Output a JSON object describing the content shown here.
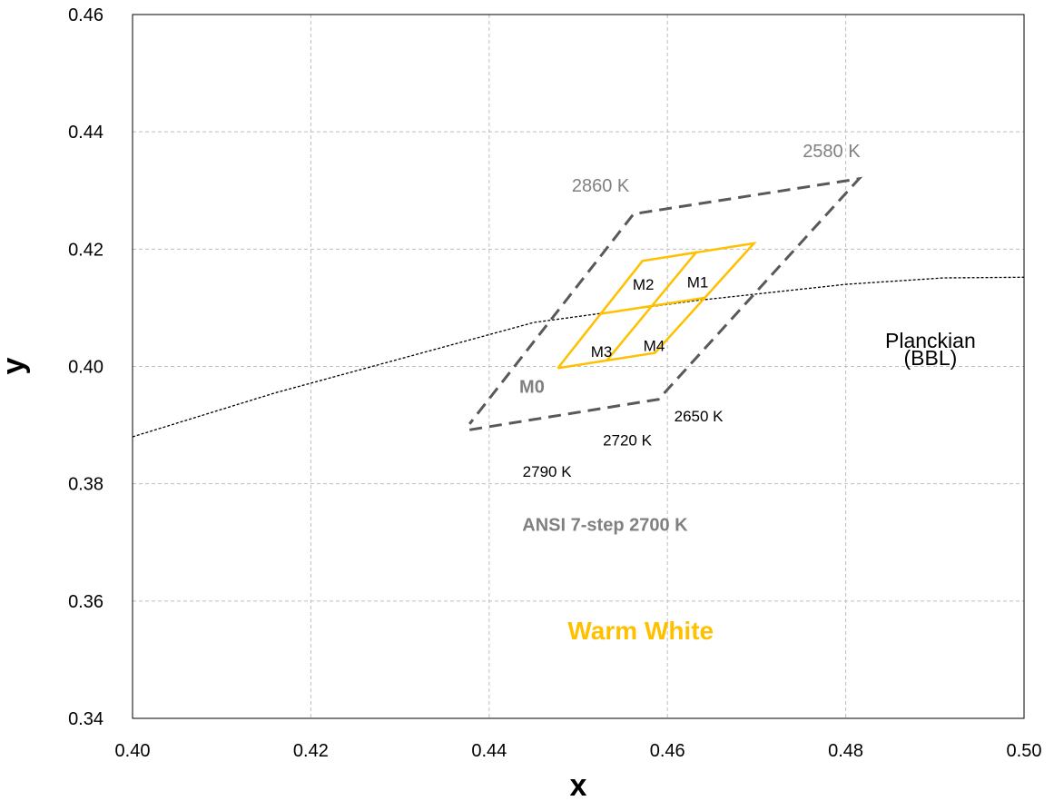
{
  "chart_data": {
    "type": "line",
    "title": "",
    "xlabel": "x",
    "ylabel": "y",
    "xlim": [
      0.4,
      0.5
    ],
    "ylim": [
      0.34,
      0.46
    ],
    "xticks": [
      "0.40",
      "0.42",
      "0.44",
      "0.46",
      "0.48",
      "0.50"
    ],
    "yticks": [
      "0.34",
      "0.36",
      "0.38",
      "0.40",
      "0.42",
      "0.44",
      "0.46"
    ],
    "grid": true,
    "grid_style": "dashed",
    "series": [
      {
        "role": "planckian-locus",
        "style": "dotted",
        "color": "#000000",
        "points": [
          [
            0.4,
            0.388
          ],
          [
            0.416,
            0.3955
          ],
          [
            0.445,
            0.4075
          ],
          [
            0.463,
            0.4112
          ],
          [
            0.48,
            0.414
          ],
          [
            0.491,
            0.4151
          ],
          [
            0.5,
            0.4152
          ]
        ]
      },
      {
        "role": "ansi-quadrangle-m0",
        "style": "dashed",
        "color": "#595959",
        "points": [
          [
            0.4378,
            0.3892
          ],
          [
            0.459,
            0.3944
          ],
          [
            0.4815,
            0.432
          ],
          [
            0.4562,
            0.426
          ],
          [
            0.4378,
            0.3902
          ]
        ]
      },
      {
        "role": "bin-outer",
        "style": "solid",
        "color": "#FFC000",
        "points": [
          [
            0.4477,
            0.3997
          ],
          [
            0.4586,
            0.4023
          ],
          [
            0.4697,
            0.421
          ],
          [
            0.4572,
            0.418
          ],
          [
            0.4477,
            0.3997
          ]
        ]
      },
      {
        "role": "bin-divider-1",
        "style": "solid",
        "color": "#FFC000",
        "points": [
          [
            0.4526,
            0.409
          ],
          [
            0.4642,
            0.4117
          ]
        ]
      },
      {
        "role": "bin-divider-2",
        "style": "solid",
        "color": "#FFC000",
        "points": [
          [
            0.4532,
            0.401
          ],
          [
            0.4633,
            0.4196
          ]
        ]
      }
    ],
    "annotations": [
      {
        "id": "cct-2860",
        "text": "2860 K",
        "x": 0.4525,
        "y": 0.4298,
        "color": "#808080",
        "size": 20,
        "bold": false
      },
      {
        "id": "cct-2580",
        "text": "2580 K",
        "x": 0.4784,
        "y": 0.4357,
        "color": "#808080",
        "size": 20,
        "bold": false
      },
      {
        "id": "m2",
        "text": "M2",
        "x": 0.4573,
        "y": 0.4131,
        "color": "#000000",
        "size": 17,
        "bold": false
      },
      {
        "id": "m1",
        "text": "M1",
        "x": 0.4634,
        "y": 0.4135,
        "color": "#000000",
        "size": 17,
        "bold": false
      },
      {
        "id": "m3",
        "text": "M3",
        "x": 0.4526,
        "y": 0.4016,
        "color": "#000000",
        "size": 17,
        "bold": false
      },
      {
        "id": "m4",
        "text": "M4",
        "x": 0.4585,
        "y": 0.4026,
        "color": "#000000",
        "size": 17,
        "bold": false
      },
      {
        "id": "m0",
        "text": "M0",
        "x": 0.4448,
        "y": 0.3955,
        "color": "#808080",
        "size": 20,
        "bold": true
      },
      {
        "id": "cct-2650",
        "text": "2650 K",
        "x": 0.4635,
        "y": 0.3906,
        "color": "#000000",
        "size": 17,
        "bold": false
      },
      {
        "id": "cct-2720",
        "text": "2720 K",
        "x": 0.4555,
        "y": 0.3865,
        "color": "#000000",
        "size": 17,
        "bold": false
      },
      {
        "id": "cct-2790",
        "text": "2790 K",
        "x": 0.4465,
        "y": 0.3812,
        "color": "#000000",
        "size": 17,
        "bold": false
      },
      {
        "id": "ansi-label",
        "text": "ANSI  7-step 2700 K",
        "x": 0.453,
        "y": 0.372,
        "color": "#808080",
        "size": 20,
        "bold": true
      },
      {
        "id": "warm-white",
        "text": "Warm White",
        "x": 0.457,
        "y": 0.3535,
        "color": "#FFC000",
        "size": 28,
        "bold": true
      },
      {
        "id": "planckian-line1",
        "text": "Planckian",
        "x": 0.4895,
        "y": 0.4032,
        "color": "#000000",
        "size": 23,
        "bold": false
      },
      {
        "id": "planckian-line2",
        "text": "(BBL)",
        "x": 0.4895,
        "y": 0.4002,
        "color": "#000000",
        "size": 23,
        "bold": false
      }
    ]
  }
}
